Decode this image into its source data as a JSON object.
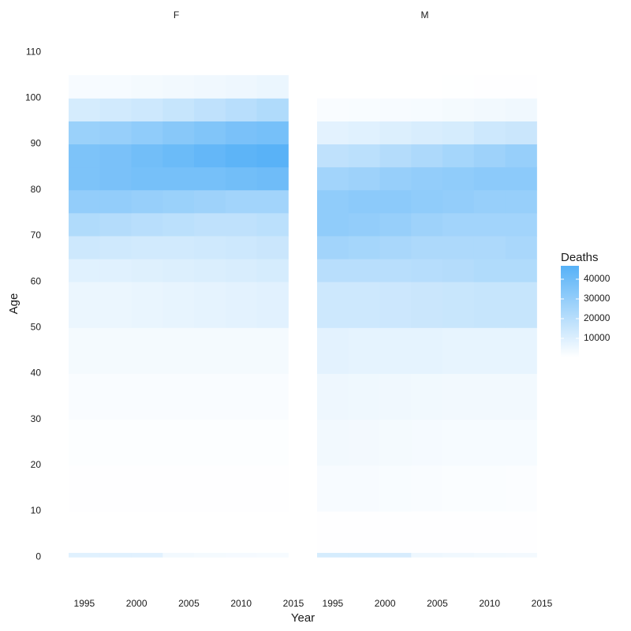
{
  "chart_data": {
    "type": "heatmap",
    "x_label": "Year",
    "y_label": "Age",
    "legend_title": "Deaths",
    "legend_position": "right",
    "low_color": "#ffffff",
    "high_color": "#56b1f7",
    "clim": [
      400,
      46800
    ],
    "legend_ticks": [
      10000,
      20000,
      30000,
      40000
    ],
    "xlim": [
      1993.5,
      2015
    ],
    "ylim": [
      -5.8,
      114.5
    ],
    "xticks": [
      1995,
      2000,
      2005,
      2010,
      2015
    ],
    "yticks": [
      0,
      10,
      20,
      30,
      40,
      50,
      60,
      70,
      80,
      90,
      100,
      110
    ],
    "x_bins": [
      1993.5,
      1996.5,
      1999.5,
      2002.5,
      2005.5,
      2008.5,
      2011.5,
      2014.5
    ],
    "y_bins": [
      0,
      1,
      10,
      20,
      30,
      40,
      50,
      60,
      65,
      70,
      75,
      80,
      85,
      90,
      95,
      100,
      105
    ],
    "facets": [
      {
        "name": "F",
        "values": [
          [
            9000,
            9000,
            8500,
            4000,
            3500,
            3200,
            3000
          ],
          [
            500,
            500,
            500,
            500,
            500,
            500,
            500
          ],
          [
            800,
            800,
            800,
            800,
            800,
            800,
            800
          ],
          [
            1200,
            1200,
            1200,
            1200,
            1200,
            1200,
            1200
          ],
          [
            2000,
            2000,
            2000,
            2000,
            2000,
            2000,
            2000
          ],
          [
            3500,
            3500,
            3500,
            3500,
            3500,
            3500,
            3500
          ],
          [
            6000,
            6000,
            6500,
            7000,
            7500,
            8000,
            8500
          ],
          [
            9000,
            9000,
            9500,
            10000,
            10500,
            11000,
            12000
          ],
          [
            14000,
            13500,
            13000,
            13000,
            13500,
            14000,
            15000
          ],
          [
            22000,
            21000,
            20000,
            19000,
            18000,
            18000,
            19000
          ],
          [
            30000,
            30000,
            29000,
            28000,
            27000,
            26000,
            26000
          ],
          [
            36000,
            37000,
            38000,
            38000,
            38000,
            39000,
            40000
          ],
          [
            36000,
            37000,
            39000,
            41000,
            43000,
            45000,
            46000
          ],
          [
            28000,
            29000,
            31000,
            33000,
            35000,
            37000,
            38000
          ],
          [
            12000,
            13000,
            14000,
            16000,
            18000,
            20000,
            22000
          ],
          [
            2500,
            3000,
            3500,
            4000,
            4500,
            5000,
            6000
          ]
        ]
      },
      {
        "name": "M",
        "values": [
          [
            12000,
            12000,
            11500,
            5000,
            4500,
            4000,
            3800
          ],
          [
            700,
            700,
            700,
            700,
            700,
            700,
            700
          ],
          [
            2500,
            2500,
            2200,
            2000,
            1800,
            1700,
            1600
          ],
          [
            4000,
            3800,
            3500,
            3200,
            3000,
            3000,
            3000
          ],
          [
            5000,
            4800,
            4500,
            4200,
            4000,
            4000,
            4000
          ],
          [
            8000,
            7500,
            7500,
            7500,
            7000,
            7000,
            7000
          ],
          [
            14000,
            14000,
            14500,
            15000,
            15500,
            16000,
            16000
          ],
          [
            20000,
            20000,
            20000,
            20500,
            21000,
            22000,
            22000
          ],
          [
            26000,
            25000,
            24000,
            23000,
            23000,
            23000,
            24000
          ],
          [
            31000,
            30000,
            29000,
            27000,
            26000,
            26000,
            26000
          ],
          [
            31000,
            32000,
            32000,
            31000,
            30000,
            29000,
            29000
          ],
          [
            26000,
            27000,
            29000,
            30000,
            31000,
            32000,
            32000
          ],
          [
            18000,
            19000,
            21000,
            23000,
            25000,
            27000,
            29000
          ],
          [
            8000,
            9000,
            10000,
            11000,
            12000,
            14000,
            15000
          ],
          [
            2000,
            2200,
            2500,
            3000,
            3500,
            4000,
            4500
          ],
          [
            300,
            300,
            400,
            500,
            600,
            700,
            800
          ]
        ]
      }
    ]
  }
}
